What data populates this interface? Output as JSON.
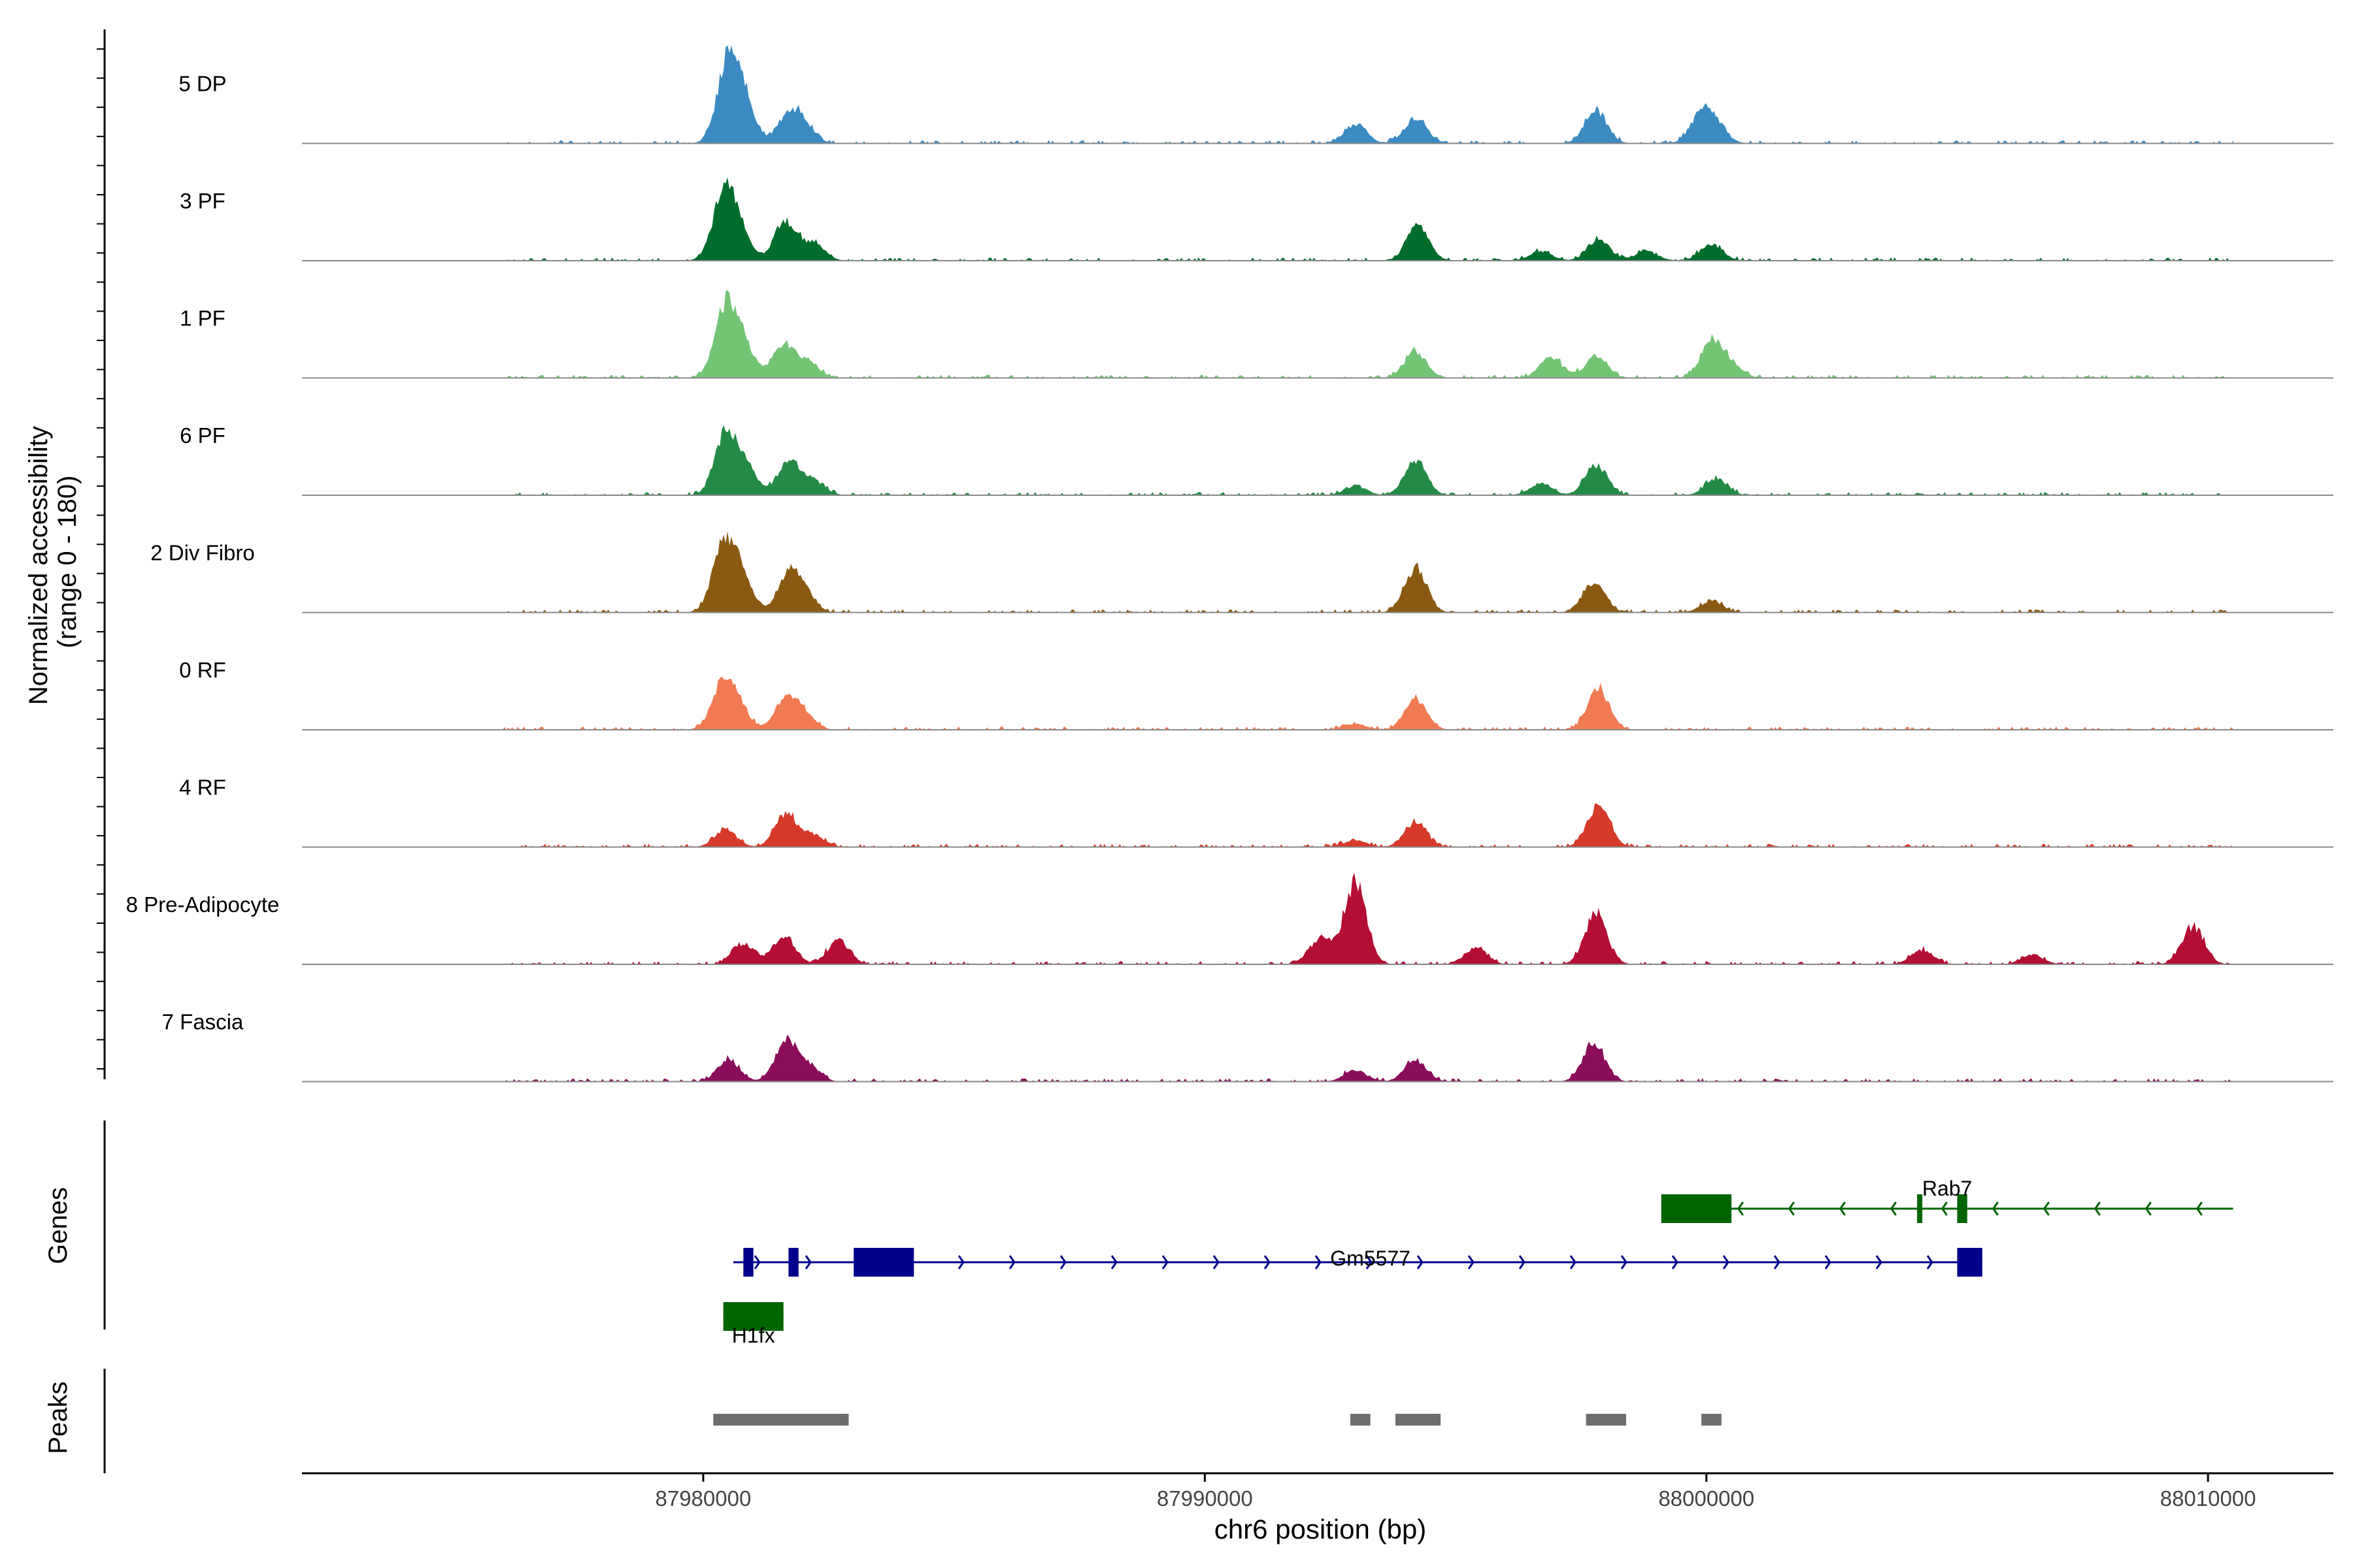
{
  "chart_data": {
    "type": "area",
    "title": "",
    "xlabel": "chr6 position (bp)",
    "ylabel_line1": "Normalized accessibility",
    "ylabel_line2": "(range 0 - 180)",
    "xlim": [
      87972000,
      88012500
    ],
    "xticks": [
      {
        "value": 87980000,
        "label": "87980000"
      },
      {
        "value": 87990000,
        "label": "87990000"
      },
      {
        "value": 88000000,
        "label": "88000000"
      },
      {
        "value": 88010000,
        "label": "88010000"
      }
    ],
    "ylim": [
      0,
      180
    ],
    "region": {
      "start": 87972000,
      "end": 88012500
    },
    "tracks": [
      {
        "name": "5 DP",
        "color": "#3b8bc2",
        "peaks": [
          [
            87980500,
            165
          ],
          [
            87980800,
            80
          ],
          [
            87981700,
            55
          ],
          [
            87982000,
            35
          ],
          [
            87993000,
            40
          ],
          [
            87994200,
            55
          ],
          [
            87997800,
            70
          ],
          [
            87999900,
            60
          ],
          [
            88000200,
            30
          ]
        ]
      },
      {
        "name": "3 PF",
        "color": "#006d2c",
        "peaks": [
          [
            87980400,
            125
          ],
          [
            87980700,
            65
          ],
          [
            87981650,
            80
          ],
          [
            87982200,
            35
          ],
          [
            87994250,
            75
          ],
          [
            87996700,
            20
          ],
          [
            87997850,
            45
          ],
          [
            87998800,
            20
          ],
          [
            88000100,
            35
          ]
        ]
      },
      {
        "name": "1 PF",
        "color": "#74c476",
        "peaks": [
          [
            87980450,
            145
          ],
          [
            87980800,
            60
          ],
          [
            87981600,
            70
          ],
          [
            87982100,
            30
          ],
          [
            87994200,
            55
          ],
          [
            87996900,
            45
          ],
          [
            87997800,
            45
          ],
          [
            88000100,
            75
          ],
          [
            88000500,
            25
          ]
        ]
      },
      {
        "name": "6 PF",
        "color": "#238b45",
        "peaks": [
          [
            87980450,
            125
          ],
          [
            87980850,
            55
          ],
          [
            87981700,
            70
          ],
          [
            87982200,
            30
          ],
          [
            87993000,
            20
          ],
          [
            87994200,
            75
          ],
          [
            87996700,
            25
          ],
          [
            87997800,
            65
          ],
          [
            88000200,
            35
          ]
        ]
      },
      {
        "name": "2 Div Fibro",
        "color": "#8b5a12",
        "peaks": [
          [
            87980400,
            135
          ],
          [
            87980750,
            75
          ],
          [
            87981700,
            75
          ],
          [
            87982000,
            40
          ],
          [
            87994200,
            95
          ],
          [
            87997750,
            65
          ],
          [
            88000100,
            25
          ]
        ]
      },
      {
        "name": "0 RF",
        "color": "#f07a52",
        "peaks": [
          [
            87980400,
            95
          ],
          [
            87980700,
            40
          ],
          [
            87981650,
            65
          ],
          [
            87982000,
            30
          ],
          [
            87994200,
            65
          ],
          [
            87997850,
            85
          ],
          [
            87993000,
            12
          ]
        ]
      },
      {
        "name": "4 RF",
        "color": "#d63a2a",
        "peaks": [
          [
            87980450,
            35
          ],
          [
            87981650,
            70
          ],
          [
            87982200,
            25
          ],
          [
            87993000,
            15
          ],
          [
            87994200,
            50
          ],
          [
            87997850,
            90
          ]
        ]
      },
      {
        "name": "8 Pre-Adipocyte",
        "color": "#b30e33",
        "peaks": [
          [
            87980800,
            45
          ],
          [
            87981600,
            60
          ],
          [
            87982700,
            50
          ],
          [
            87992300,
            55
          ],
          [
            87993000,
            175
          ],
          [
            87995400,
            35
          ],
          [
            87997800,
            105
          ],
          [
            88004300,
            30
          ],
          [
            88006500,
            20
          ],
          [
            88009700,
            80
          ]
        ]
      },
      {
        "name": "7 Fascia",
        "color": "#8b0c5a",
        "peaks": [
          [
            87980500,
            45
          ],
          [
            87981650,
            85
          ],
          [
            87982100,
            30
          ],
          [
            87993000,
            25
          ],
          [
            87994200,
            45
          ],
          [
            87997750,
            80
          ]
        ]
      }
    ],
    "genes": [
      {
        "name": "Rab7",
        "strand": "-",
        "color": "#006400",
        "start": 87999100,
        "end": 88010500,
        "exons": [
          [
            87999100,
            88000500
          ],
          [
            88004200,
            88004300
          ],
          [
            88005000,
            88005200
          ]
        ]
      },
      {
        "name": "Gm5577",
        "strand": "+",
        "color": "#00008b",
        "start": 87980600,
        "end": 88005500,
        "exons": [
          [
            87980800,
            87981000
          ],
          [
            87981700,
            87981900
          ],
          [
            87983000,
            87984200
          ],
          [
            88005000,
            88005500
          ]
        ]
      },
      {
        "name": "H1fx",
        "strand": "-",
        "color": "#006400",
        "start": 87980400,
        "end": 87981600,
        "exons": [
          [
            87980400,
            87981600
          ]
        ]
      }
    ],
    "peaks": [
      [
        87980200,
        87982900
      ],
      [
        87992900,
        87993300
      ],
      [
        87993800,
        87994700
      ],
      [
        87997600,
        87998400
      ],
      [
        87999900,
        88000300
      ]
    ],
    "panel_labels": {
      "genes": "Genes",
      "peaks": "Peaks"
    }
  }
}
